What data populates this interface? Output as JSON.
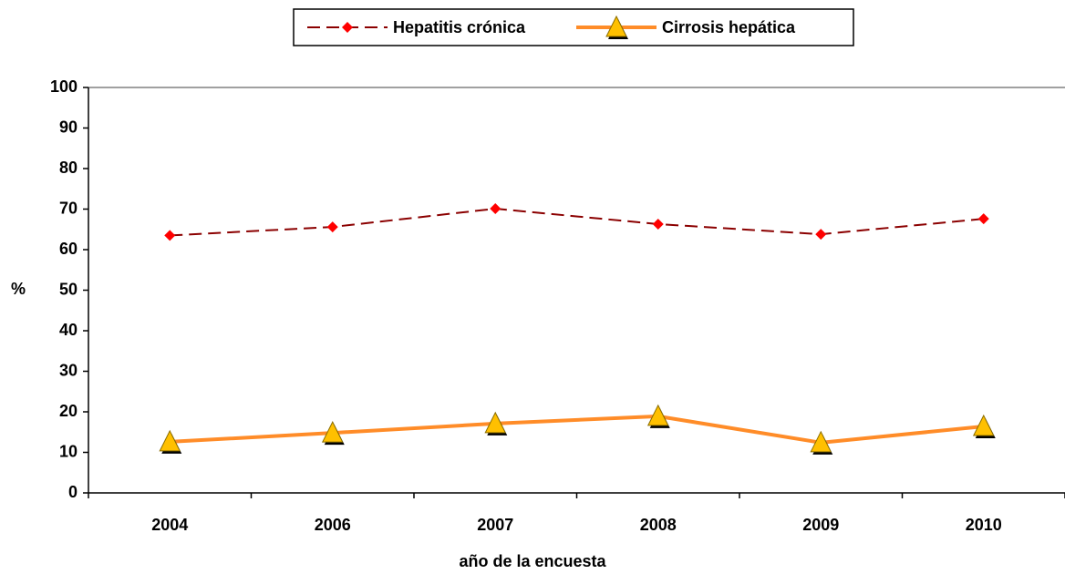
{
  "chart_data": {
    "type": "line",
    "x_label": "año de la encuesta",
    "y_label": "%",
    "categories": [
      "2004",
      "2006",
      "2007",
      "2008",
      "2009",
      "2010"
    ],
    "series": [
      {
        "name": "Hepatitis crónica",
        "color": "#8b0000",
        "marker_color": "#ff0000",
        "values": [
          63.5,
          65.6,
          70.1,
          66.3,
          63.8,
          67.6
        ]
      },
      {
        "name": "Cirrosis hepática",
        "color": "#ff8c28",
        "marker_color": "#ffc000",
        "values": [
          12.6,
          14.8,
          17.1,
          18.9,
          12.4,
          16.4
        ]
      }
    ],
    "ylim": [
      0,
      100
    ],
    "yticks": [
      0,
      10,
      20,
      30,
      40,
      50,
      60,
      70,
      80,
      90,
      100
    ],
    "grid": false
  }
}
